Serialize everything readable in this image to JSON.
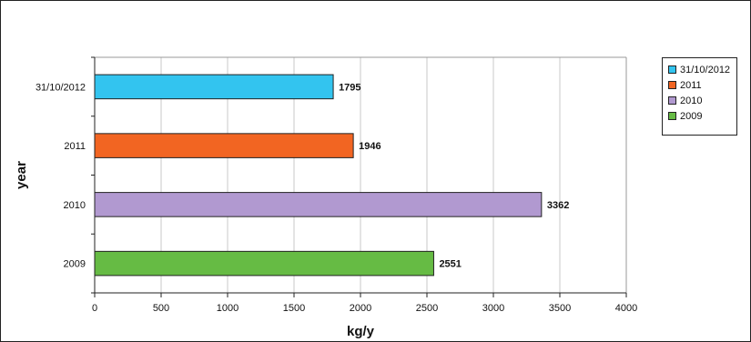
{
  "chart_data": {
    "type": "bar",
    "orientation": "horizontal",
    "categories": [
      "31/10/2012",
      "2011",
      "2010",
      "2009"
    ],
    "values": [
      1795,
      1946,
      3362,
      2551
    ],
    "value_labels": [
      "1795",
      "1946",
      "3362",
      "2551"
    ],
    "colors": [
      "#33c4ef",
      "#f26522",
      "#b199d0",
      "#66bb44"
    ],
    "xlabel": "kg/y",
    "ylabel": "year",
    "xlim": [
      0,
      4000
    ],
    "x_ticks": [
      0,
      500,
      1000,
      1500,
      2000,
      2500,
      3000,
      3500,
      4000
    ],
    "x_tick_labels": [
      "0",
      "500",
      "1000",
      "1500",
      "2000",
      "2500",
      "3000",
      "3500",
      "4000"
    ],
    "grid": "vertical",
    "legend_position": "right",
    "legend": [
      {
        "label": "31/10/2012",
        "color": "#33c4ef"
      },
      {
        "label": "2011",
        "color": "#f26522"
      },
      {
        "label": "2010",
        "color": "#b199d0"
      },
      {
        "label": "2009",
        "color": "#66bb44"
      }
    ]
  }
}
